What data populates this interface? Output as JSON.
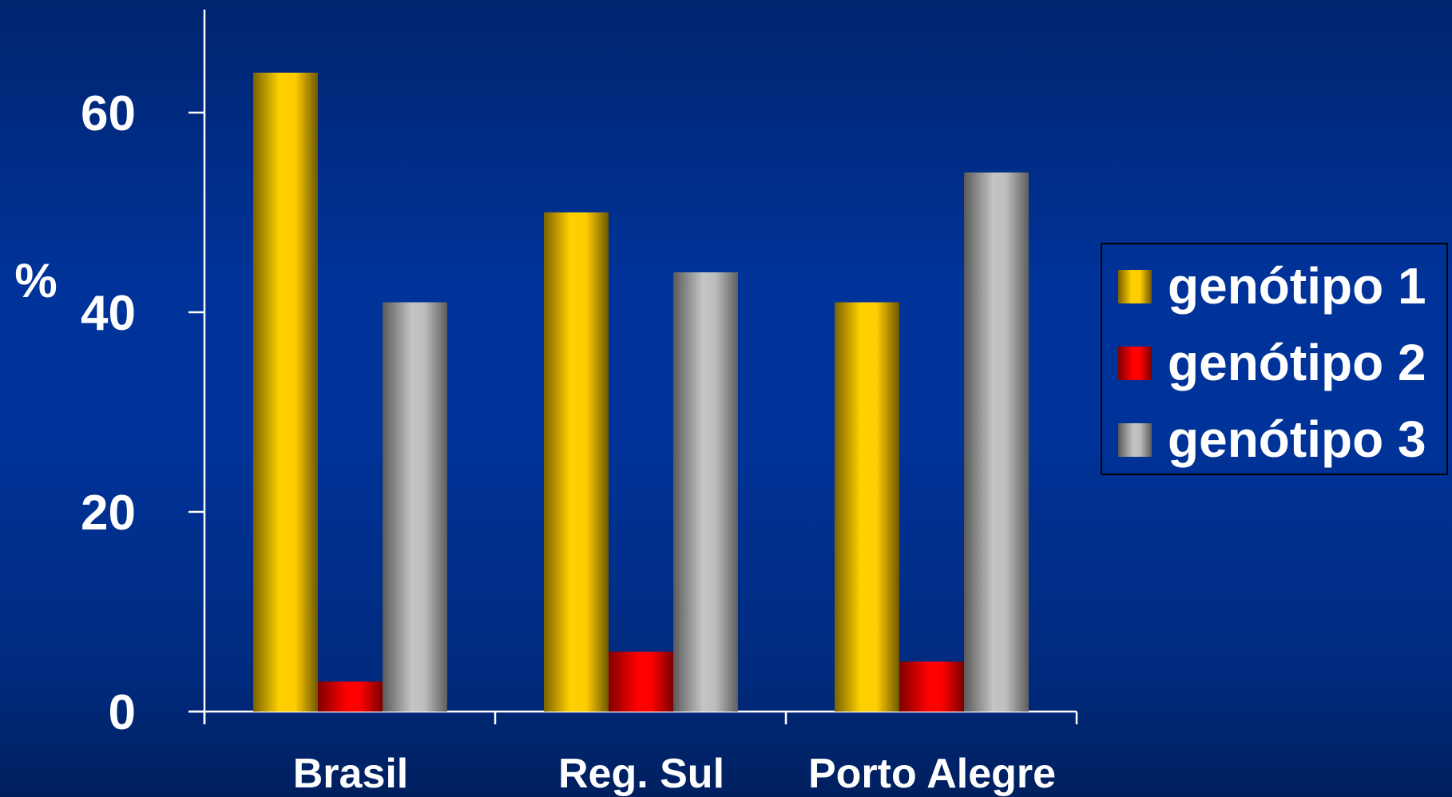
{
  "chart_data": {
    "type": "bar",
    "ylabel": "%",
    "ylim": [
      0,
      70
    ],
    "yticks": [
      0,
      20,
      40,
      60
    ],
    "categories": [
      "Brasil",
      "Reg. Sul",
      "Porto Alegre"
    ],
    "series": [
      {
        "name": "genótipo 1",
        "values": [
          64,
          50,
          41
        ],
        "color": "#ffcc00"
      },
      {
        "name": "genótipo 2",
        "values": [
          3,
          6,
          5
        ],
        "color": "#ff0000"
      },
      {
        "name": "genótipo 3",
        "values": [
          41,
          44,
          54
        ],
        "color": "#bfbfbf"
      }
    ],
    "legend": "right",
    "grid": false
  }
}
